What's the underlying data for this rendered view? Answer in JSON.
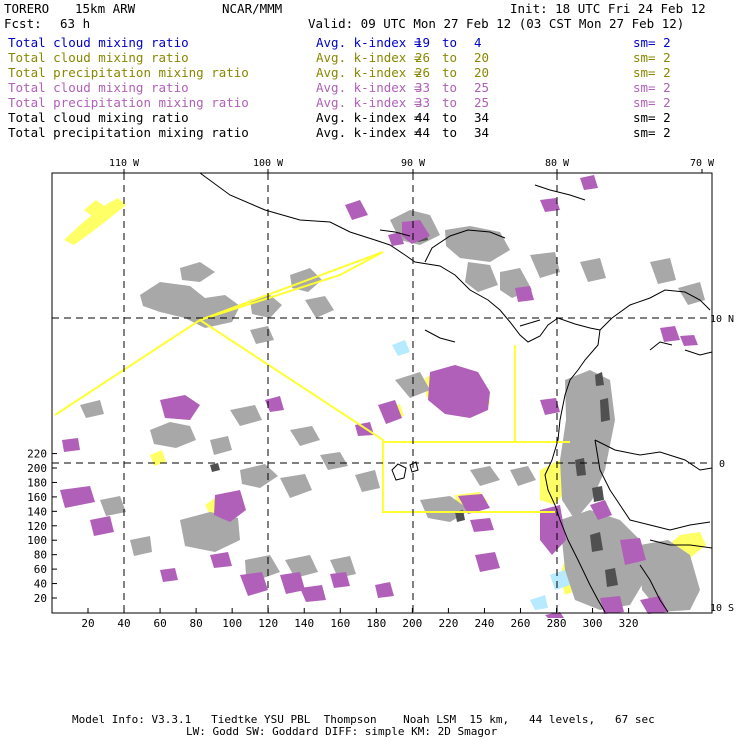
{
  "header": {
    "model": "TORERO",
    "resolution": "15km ARW",
    "org": "NCAR/MMM",
    "init": "Init: 18 UTC Fri 24 Feb 12",
    "fcst_label": "Fcst:",
    "fcst_value": "63 h",
    "valid": "Valid: 09 UTC Mon 27 Feb 12 (03 CST Mon 27 Feb 12)"
  },
  "legend_rows": [
    {
      "name": "Total cloud mixing ratio",
      "avg": "Avg. k-index =",
      "from": "19",
      "to_word": "to",
      "to": "4",
      "sm": "sm= 2",
      "color": "#0000cc"
    },
    {
      "name": "Total cloud mixing ratio",
      "avg": "Avg. k-index =",
      "from": "26",
      "to_word": "to",
      "to": "20",
      "sm": "sm= 2",
      "color": "#888800"
    },
    {
      "name": "Total precipitation mixing ratio",
      "avg": "Avg. k-index =",
      "from": "26",
      "to_word": "to",
      "to": "20",
      "sm": "sm= 2",
      "color": "#888800"
    },
    {
      "name": "Total cloud mixing ratio",
      "avg": "Avg. k-index =",
      "from": "33",
      "to_word": "to",
      "to": "25",
      "sm": "sm= 2",
      "color": "#b060b8"
    },
    {
      "name": "Total precipitation mixing ratio",
      "avg": "Avg. k-index =",
      "from": "33",
      "to_word": "to",
      "to": "25",
      "sm": "sm= 2",
      "color": "#b060b8"
    },
    {
      "name": "Total cloud mixing ratio",
      "avg": "Avg. k-index =",
      "from": "44",
      "to_word": "to",
      "to": "34",
      "sm": "sm= 2",
      "color": "#000000"
    },
    {
      "name": "Total precipitation mixing ratio",
      "avg": "Avg. k-index =",
      "from": "44",
      "to_word": "to",
      "to": "34",
      "sm": "sm= 2",
      "color": "#000000"
    }
  ],
  "axes": {
    "lon_labels": [
      "110 W",
      "100 W",
      "90 W",
      "80 W",
      "70 W"
    ],
    "lat_labels": [
      "10 N",
      "0",
      "10 S"
    ],
    "y_ticks": [
      "220",
      "200",
      "180",
      "160",
      "140",
      "120",
      "100",
      "80",
      "60",
      "40",
      "20"
    ],
    "x_ticks": [
      "20",
      "40",
      "60",
      "80",
      "100",
      "120",
      "140",
      "160",
      "180",
      "200",
      "220",
      "240",
      "260",
      "280",
      "300",
      "320"
    ]
  },
  "map_colors": {
    "cloud_gray": "#a8a8a8",
    "cloud_dark": "#505050",
    "purple": "#b060b8",
    "yellow": "#ffff66",
    "light_blue": "#b8eaff",
    "boundary_yellow": "#ffff33"
  },
  "footer": {
    "line1": "Model Info: V3.3.1   Tiedtke YSU PBL  Thompson    Noah LSM  15 km,   44 levels,   67 sec",
    "line2": "LW: Godd SW: Goddard DIFF: simple KM: 2D Smagor"
  }
}
